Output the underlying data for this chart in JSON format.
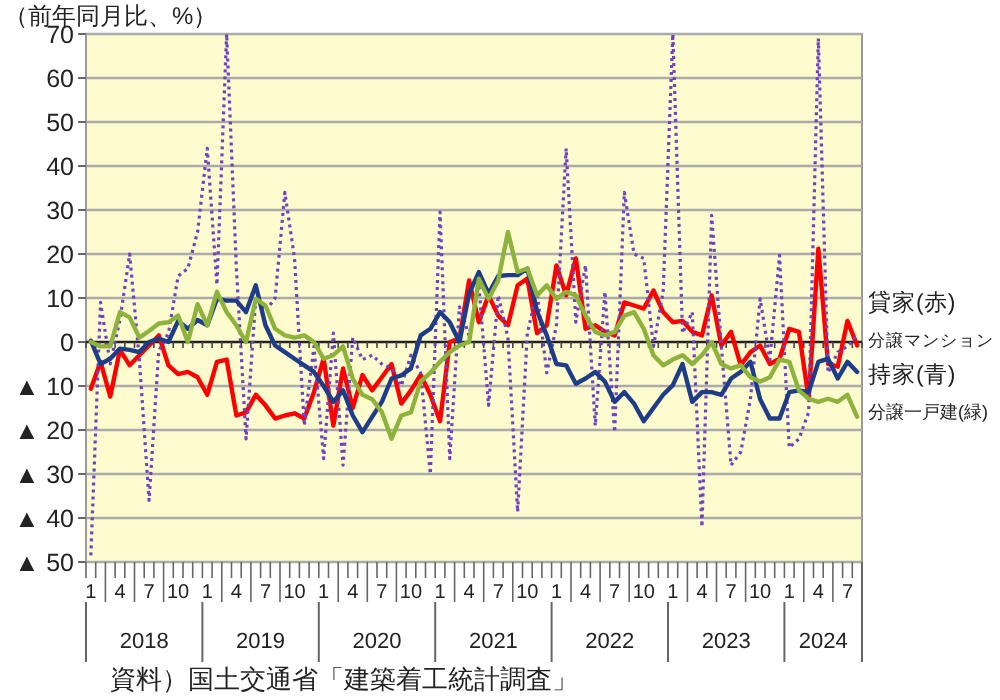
{
  "chart_data": {
    "type": "line",
    "ylabel": "（前年同月比、%）",
    "categories": [
      "1",
      null,
      null,
      "4",
      null,
      null,
      "7",
      null,
      null,
      "10",
      null,
      null,
      "1",
      null,
      null,
      "4",
      null,
      null,
      "7",
      null,
      null,
      "10",
      null,
      null,
      "1",
      null,
      null,
      "4",
      null,
      null,
      "7",
      null,
      null,
      "10",
      null,
      null,
      "1",
      null,
      null,
      "4",
      null,
      null,
      "7",
      null,
      null,
      "10",
      null,
      null,
      "1",
      null,
      null,
      "4",
      null,
      null,
      "7",
      null,
      null,
      "10",
      null,
      null,
      "1",
      null,
      null,
      "4",
      null,
      null,
      "7",
      null,
      null,
      "10",
      null,
      null,
      "1",
      null,
      null,
      "4",
      null,
      null,
      "7",
      null
    ],
    "series": [
      {
        "name": "貸家(赤)",
        "color": "#ff0000",
        "values": [
          -10.6,
          -4.5,
          -12.4,
          -1.8,
          -5.3,
          -3,
          -0.8,
          1.5,
          -5.3,
          -7.3,
          -6.8,
          -8,
          -12,
          -4.5,
          -4,
          -16.7,
          -16,
          -12,
          -14.4,
          -17.4,
          -16.7,
          -16.2,
          -17.4,
          -11.4,
          -3.8,
          -19,
          -6,
          -15,
          -7.5,
          -11,
          -8,
          -5,
          -14,
          -11,
          -7.5,
          -12,
          -18,
          0,
          0.8,
          14,
          4.5,
          10.6,
          6,
          3.8,
          12.9,
          14.4,
          2,
          3.8,
          17.4,
          10.6,
          19,
          3,
          3.8,
          2.3,
          1.5,
          9,
          8.3,
          7.6,
          11.7,
          6.8,
          4.5,
          4.8,
          2.3,
          1.5,
          10.6,
          -0.8,
          2.3,
          -5.3,
          -2.3,
          -0.8,
          -5,
          -3.8,
          3,
          2.3,
          -12.9,
          21.2,
          -5,
          -5.6,
          4.8,
          -0.8
        ]
      },
      {
        "name": "分譲マンション",
        "color": "#6f42c1",
        "line_style": "dotted",
        "values": [
          -48.5,
          9,
          -5,
          5,
          20,
          -4,
          -36,
          -2,
          2,
          15,
          16.7,
          25,
          44,
          13,
          70,
          17,
          -22,
          10,
          7,
          10,
          34,
          19,
          -19,
          -1,
          -26.5,
          2,
          -28,
          1,
          -4,
          -3,
          -5,
          -6,
          -10,
          -3,
          -7,
          -30,
          29.5,
          -26.5,
          8,
          1.5,
          13,
          -14.4,
          10.6,
          1,
          -38.6,
          2,
          11.4,
          -7,
          3.8,
          44,
          4.5,
          17.4,
          -19,
          11.4,
          -20.5,
          34,
          20,
          19,
          -1,
          11.4,
          70,
          2,
          6.8,
          -42,
          28.8,
          -1,
          -28,
          -25,
          -13,
          9.8,
          -4,
          19.7,
          -24,
          -22,
          -16,
          69,
          -7,
          -2.3,
          -1,
          1.5
        ]
      },
      {
        "name": "持家(青)",
        "color": "#1f3c88",
        "values": [
          0.3,
          -5,
          -3.8,
          -1.5,
          -1.8,
          -2.3,
          0,
          0.8,
          0,
          4.8,
          3,
          5,
          3.8,
          9.8,
          9.4,
          9.4,
          6.8,
          12.9,
          3.8,
          -0.8,
          -2.3,
          -3.8,
          -5.3,
          -6.8,
          -10,
          -13.6,
          -11,
          -16.7,
          -20.5,
          -17,
          -13.6,
          -8.3,
          -7.6,
          -6,
          1.5,
          3,
          6.8,
          4.5,
          0,
          11,
          15.9,
          11,
          15,
          15.2,
          15.2,
          16.7,
          7,
          1.5,
          -5,
          -5.3,
          -9.5,
          -8.3,
          -6.8,
          -9,
          -13.6,
          -11.4,
          -14,
          -18,
          -15,
          -12,
          -9.8,
          -5,
          -13.6,
          -11.4,
          -11.4,
          -12,
          -8.3,
          -6.8,
          -4.5,
          -13,
          -17.4,
          -17.4,
          -11.4,
          -11,
          -11.4,
          -4.5,
          -3.8,
          -8.3,
          -4.5,
          -6.8
        ]
      },
      {
        "name": "分譲一戸建(緑)",
        "color": "#8db33c",
        "values": [
          0,
          -1,
          -1,
          6.8,
          5.6,
          1,
          2.5,
          4.2,
          4.5,
          6,
          0,
          8.6,
          3.8,
          11.4,
          6.8,
          3.8,
          0,
          9.8,
          8.3,
          3,
          1.5,
          1,
          1.5,
          0,
          -3.8,
          -3,
          -1,
          -8.3,
          -12,
          -13,
          -15.9,
          -22,
          -16.7,
          -16,
          -9,
          -7,
          -4.5,
          -2.3,
          -0.8,
          0,
          14.4,
          9.8,
          14,
          25,
          15.9,
          16.7,
          10.6,
          12.9,
          9.8,
          11.4,
          10.6,
          6,
          2.3,
          1.5,
          2.3,
          6,
          6.8,
          3,
          -3,
          -5.3,
          -4,
          -3,
          -5,
          -3,
          0,
          -5,
          -6,
          -5.3,
          -8,
          -9,
          -8,
          -4,
          -4.5,
          -11,
          -12.9,
          -13.6,
          -12.9,
          -13.6,
          -12,
          -17
        ]
      }
    ],
    "ylim": [
      -50,
      70
    ],
    "yticks": [
      {
        "value": -50,
        "label": "▲ 50"
      },
      {
        "value": -40,
        "label": "▲ 40"
      },
      {
        "value": -30,
        "label": "▲ 30"
      },
      {
        "value": -20,
        "label": "▲ 20"
      },
      {
        "value": -10,
        "label": "▲ 10"
      },
      0,
      10,
      20,
      30,
      40,
      50,
      60,
      70
    ],
    "grid": "y",
    "legend": "right",
    "marker": "none",
    "line_style": "solid",
    "annotations": [
      "2018",
      "2019",
      "2020",
      "2021",
      "2022",
      "2023",
      "2024",
      "資料）国土交通省「建築着工統計調査」"
    ]
  }
}
